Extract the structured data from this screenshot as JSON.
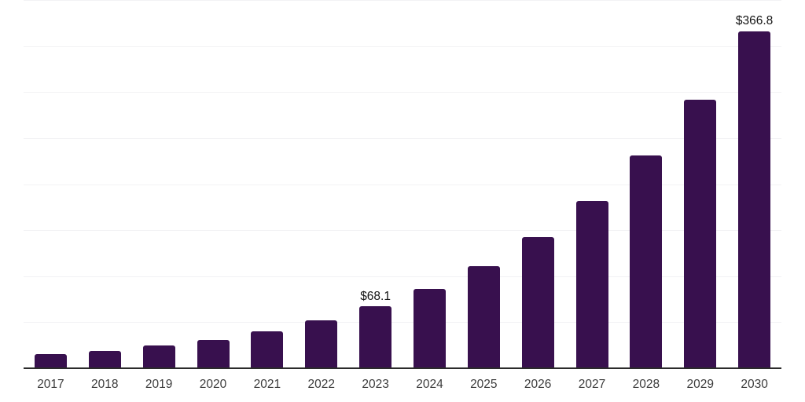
{
  "chart_data": {
    "type": "bar",
    "title": "",
    "xlabel": "",
    "ylabel": "",
    "categories": [
      "2017",
      "2018",
      "2019",
      "2020",
      "2021",
      "2022",
      "2023",
      "2024",
      "2025",
      "2026",
      "2027",
      "2028",
      "2029",
      "2030"
    ],
    "values": [
      16.2,
      20.0,
      25.6,
      32.0,
      41.2,
      52.9,
      68.1,
      87.0,
      111.5,
      143.0,
      182.5,
      232.0,
      292.5,
      366.8
    ],
    "data_labels": {
      "2023": "$68.1",
      "2030": "$366.8"
    },
    "value_prefix": "$",
    "ylim": [
      0,
      400
    ],
    "gridline_step": 50,
    "grid": true,
    "legend": "none",
    "colors": {
      "bar_fill": "#38104E",
      "gridline": "#f2f2f4",
      "axis_line": "#2b2b2b",
      "tick_label": "#3c3c3c",
      "data_label": "#141414",
      "background": "#ffffff"
    }
  }
}
